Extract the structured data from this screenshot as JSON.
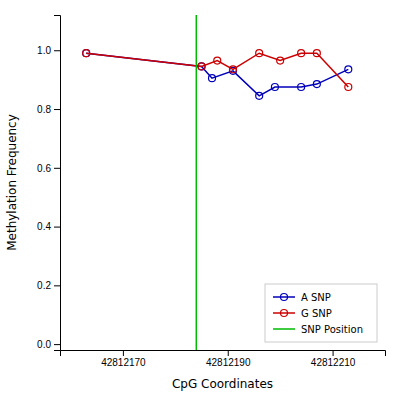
{
  "chart_data": {
    "type": "line",
    "xlabel": "CpG Coordinates",
    "ylabel": "Methylation Frequency",
    "xlim": [
      42812158,
      42812220
    ],
    "ylim": [
      -0.02,
      1.12
    ],
    "xticks": [
      42812170,
      42812190,
      42812210
    ],
    "yticks": [
      {
        "value": 0.0,
        "label": "0.0"
      },
      0.2,
      0.4,
      0.6,
      0.8,
      {
        "value": 1.0,
        "label": "1.0"
      }
    ],
    "legend": "lower right",
    "series": [
      {
        "name": "A SNP",
        "color": "#0000bb",
        "marker": "circle",
        "x": [
          42812163,
          42812185,
          42812187,
          42812191,
          42812196,
          42812199,
          42812204,
          42812207,
          42812213
        ],
        "values": [
          0.99,
          0.945,
          0.905,
          0.93,
          0.845,
          0.875,
          0.875,
          0.885,
          0.935
        ]
      },
      {
        "name": "G SNP",
        "color": "#cc0000",
        "marker": "circle",
        "x": [
          42812163,
          42812185,
          42812188,
          42812191,
          42812196,
          42812200,
          42812204,
          42812207,
          42812213
        ],
        "values": [
          0.99,
          0.945,
          0.965,
          0.935,
          0.99,
          0.965,
          0.99,
          0.99,
          0.875
        ]
      },
      {
        "name": "SNP Position",
        "type": "vline",
        "color": "#00bb00",
        "x": [
          42812184
        ]
      }
    ]
  }
}
